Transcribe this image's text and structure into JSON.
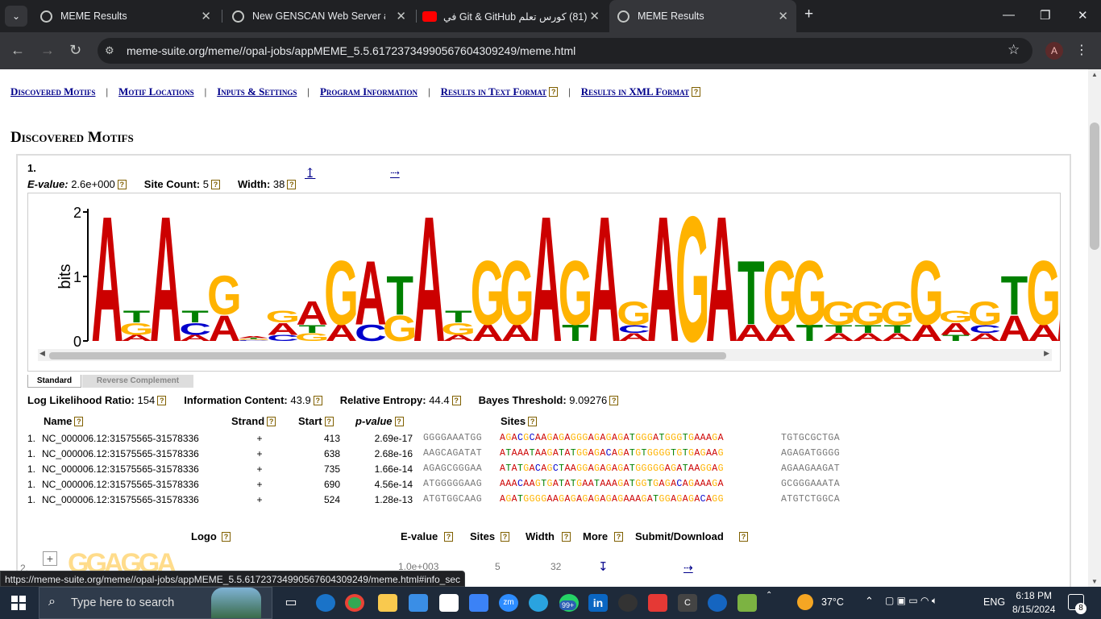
{
  "browser": {
    "tabs": [
      {
        "title": "MEME Results",
        "active": false
      },
      {
        "title": "New GENSCAN Web Server at M",
        "active": false
      },
      {
        "title": "(81) كورس تعلم Git & GitHub في",
        "active": false
      },
      {
        "title": "MEME Results",
        "active": true
      }
    ],
    "new_tab_label": "+",
    "url_host": "meme-suite.org",
    "url_path": "/meme//opal-jobs/appMEME_5.5.61723734990567604309249/meme.html",
    "profile_initial": "A",
    "status_url": "https://meme-suite.org/meme//opal-jobs/appMEME_5.5.61723734990567604309249/meme.html#info_sec"
  },
  "nav": {
    "discovered": "Discovered Motifs",
    "locations": "Motif Locations",
    "inputs": "Inputs & Settings",
    "program": "Program Information",
    "text": "Results in Text Format",
    "xml": "Results in XML Format",
    "sep": "|"
  },
  "help_glyph": "?",
  "section_title": "Discovered Motifs",
  "motif1": {
    "number": "1.",
    "evalue_label": "E-value:",
    "evalue": "2.6e+000",
    "sitecount_label": "Site Count:",
    "sitecount": "5",
    "width_label": "Width:",
    "width": "38",
    "up_arrow": "↥",
    "right_arrow": "⇢",
    "logo": {
      "ylabel": "bits",
      "yticks": [
        "0",
        "1",
        "2"
      ],
      "tab_standard": "Standard",
      "tab_revcomp": "Reverse Complement"
    },
    "llr_label": "Log Likelihood Ratio:",
    "llr": "154",
    "ic_label": "Information Content:",
    "ic": "43.9",
    "re_label": "Relative Entropy:",
    "re": "44.4",
    "bt_label": "Bayes Threshold:",
    "bt": "9.09276",
    "headers": {
      "name": "Name",
      "strand": "Strand",
      "start": "Start",
      "pvalue": "p-value",
      "sites": "Sites"
    },
    "sites": [
      {
        "idx": "1.",
        "name": "NC_000006.12:31575565-31578336",
        "strand": "+",
        "start": "413",
        "pvalue": "2.69e-17",
        "left": "GGGGAAATGG",
        "site": "AGACGCAAGAGAGGGAGAGAGATGGGATGGGTGAAAGA",
        "right": "TGTGCGCTGA"
      },
      {
        "idx": "1.",
        "name": "NC_000006.12:31575565-31578336",
        "strand": "+",
        "start": "638",
        "pvalue": "2.68e-16",
        "left": "AAGCAGATAT",
        "site": "ATAAATAAGATATGGAGACAGATGTGGGGTGTGAGAAG",
        "right": "AGAGATGGGG"
      },
      {
        "idx": "1.",
        "name": "NC_000006.12:31575565-31578336",
        "strand": "+",
        "start": "735",
        "pvalue": "1.66e-14",
        "left": "AGAGCGGGAA",
        "site": "ATATGACAGCTAAGGAGAGAGATGGGGGAGATAAGGAG",
        "right": "AGAAGAAGAT"
      },
      {
        "idx": "1.",
        "name": "NC_000006.12:31575565-31578336",
        "strand": "+",
        "start": "690",
        "pvalue": "4.56e-14",
        "left": "ATGGGGGAAG",
        "site": "AAACAAGTGATATGAATAAAGATGGTGAGACAGAAAGA",
        "right": "GCGGGAAATA"
      },
      {
        "idx": "1.",
        "name": "NC_000006.12:31575565-31578336",
        "strand": "+",
        "start": "524",
        "pvalue": "1.28e-13",
        "left": "ATGTGGCAAG",
        "site": "AGATGGGGAAGAGAGAGAGAGAAAGATGGAGAGACAGG",
        "right": "ATGTCTGGCA"
      }
    ]
  },
  "summary_headers": {
    "logo": "Logo",
    "evalue": "E-value",
    "sites": "Sites",
    "width": "Width",
    "more": "More",
    "submit": "Submit/Download"
  },
  "motif2": {
    "number": "2.",
    "expand": "+",
    "evalue": "1.0e+003",
    "sites": "5",
    "width": "32",
    "down_arrow": "↧",
    "right_arrow": "⇢"
  },
  "taskbar": {
    "search_placeholder": "Type here to search",
    "weather": "37°C",
    "language": "ENG",
    "time": "6:18 PM",
    "date": "8/15/2024",
    "notification_count": "8",
    "teams_badge": "99+"
  },
  "colors": {
    "A": "#cc0000",
    "C": "#0000cc",
    "G": "#ffb300",
    "T": "#008000",
    "link": "#00008b"
  }
}
